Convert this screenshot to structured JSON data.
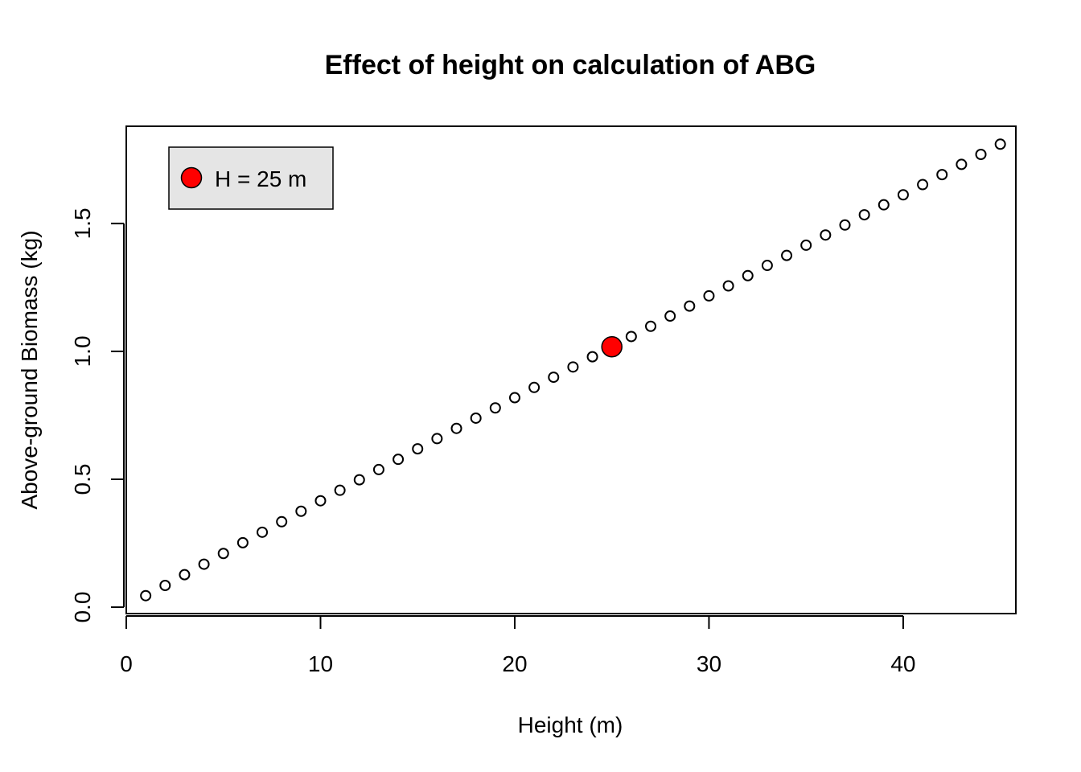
{
  "chart_data": {
    "type": "scatter",
    "title": "Effect of height on calculation of ABG",
    "xlabel": "Height (m)",
    "ylabel": "Above-ground Biomass (kg)",
    "xlim": [
      0.0,
      45.8
    ],
    "ylim": [
      -0.025,
      1.88
    ],
    "xticks": [
      0,
      10,
      20,
      30,
      40
    ],
    "yticks": [
      0.0,
      0.5,
      1.0,
      1.5
    ],
    "xtick_labels": [
      "0",
      "10",
      "20",
      "30",
      "40"
    ],
    "ytick_labels": [
      "0.0",
      "0.5",
      "1.0",
      "1.5"
    ],
    "grid": false,
    "legend": {
      "placement": "top-left",
      "entries": [
        {
          "label": "H = 25 m",
          "marker": "filled-circle",
          "color": "#ff0000"
        }
      ]
    },
    "series": [
      {
        "marker": "open-circle",
        "color": "#000000",
        "x": [
          1,
          2,
          3,
          4,
          5,
          6,
          7,
          8,
          9,
          10,
          11,
          12,
          13,
          14,
          15,
          16,
          17,
          18,
          19,
          20,
          21,
          22,
          23,
          24,
          25,
          26,
          27,
          28,
          29,
          30,
          31,
          32,
          33,
          34,
          35,
          36,
          37,
          38,
          39,
          40,
          41,
          42,
          43,
          44,
          45
        ],
        "y": [
          0.045,
          0.085,
          0.127,
          0.168,
          0.21,
          0.252,
          0.293,
          0.334,
          0.375,
          0.416,
          0.457,
          0.498,
          0.538,
          0.578,
          0.619,
          0.659,
          0.699,
          0.739,
          0.779,
          0.819,
          0.859,
          0.899,
          0.939,
          0.979,
          1.018,
          1.058,
          1.098,
          1.138,
          1.177,
          1.217,
          1.256,
          1.296,
          1.336,
          1.375,
          1.415,
          1.455,
          1.494,
          1.534,
          1.573,
          1.612,
          1.652,
          1.691,
          1.731,
          1.77,
          1.81
        ]
      },
      {
        "name": "H = 25 m",
        "marker": "filled-circle",
        "color": "#ff0000",
        "x": [
          25
        ],
        "y": [
          1.018
        ]
      }
    ]
  }
}
